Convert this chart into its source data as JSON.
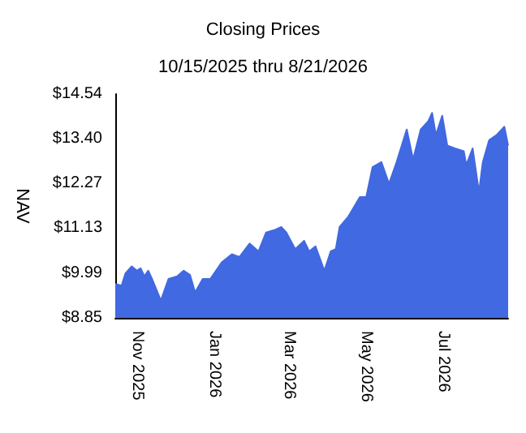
{
  "chart_data": {
    "type": "area",
    "title": "Closing Prices",
    "subtitle": "10/15/2025 thru 8/21/2026",
    "ylabel": "NAV",
    "x": [
      "2025-10-15",
      "2025-10-20",
      "2025-10-23",
      "2025-10-28",
      "2025-11-01",
      "2025-11-04",
      "2025-11-07",
      "2025-11-10",
      "2025-11-13",
      "2025-11-20",
      "2025-11-26",
      "2025-12-03",
      "2025-12-08",
      "2025-12-13",
      "2025-12-17",
      "2025-12-23",
      "2025-12-29",
      "2026-01-07",
      "2026-01-15",
      "2026-01-21",
      "2026-01-29",
      "2026-02-05",
      "2026-02-11",
      "2026-02-18",
      "2026-02-23",
      "2026-02-27",
      "2026-03-06",
      "2026-03-13",
      "2026-03-17",
      "2026-03-22",
      "2026-03-29",
      "2026-04-03",
      "2026-04-07",
      "2026-04-10",
      "2026-04-17",
      "2026-04-26",
      "2026-05-01",
      "2026-05-06",
      "2026-05-13",
      "2026-05-19",
      "2026-05-25",
      "2026-06-02",
      "2026-06-07",
      "2026-06-13",
      "2026-06-19",
      "2026-06-22",
      "2026-06-25",
      "2026-06-30",
      "2026-07-04",
      "2026-07-10",
      "2026-07-17",
      "2026-07-19",
      "2026-07-24",
      "2026-07-29",
      "2026-08-01",
      "2026-08-06",
      "2026-08-12",
      "2026-08-18",
      "2026-08-21"
    ],
    "series": [
      {
        "color": "#4169e1",
        "values": [
          9.71,
          9.67,
          9.98,
          10.16,
          10.05,
          10.11,
          9.91,
          10.05,
          9.84,
          9.29,
          9.84,
          9.91,
          10.05,
          9.94,
          9.5,
          9.84,
          9.84,
          10.26,
          10.47,
          10.4,
          10.74,
          10.54,
          11.02,
          11.09,
          11.16,
          11.02,
          10.6,
          10.81,
          10.54,
          10.67,
          10.05,
          10.54,
          10.6,
          11.16,
          11.43,
          11.92,
          11.92,
          12.68,
          12.81,
          12.26,
          12.81,
          13.64,
          12.88,
          13.64,
          13.85,
          14.06,
          13.5,
          13.99,
          13.23,
          13.16,
          13.09,
          12.74,
          13.16,
          12.05,
          12.81,
          13.37,
          13.5,
          13.71,
          13.23
        ]
      }
    ],
    "xlim": [
      "2025-10-15",
      "2026-08-21"
    ],
    "xticks": [
      {
        "value": "2025-11-01",
        "label": "Nov 2025"
      },
      {
        "value": "2026-01-01",
        "label": "Jan 2026"
      },
      {
        "value": "2026-03-01",
        "label": "Mar 2026"
      },
      {
        "value": "2026-05-01",
        "label": "May 2026"
      },
      {
        "value": "2026-07-01",
        "label": "Jul 2026"
      }
    ],
    "ylim": [
      8.85,
      14.54
    ],
    "yticks": [
      {
        "value": 8.85,
        "label": "$8.85"
      },
      {
        "value": 9.99,
        "label": "$9.99"
      },
      {
        "value": 11.13,
        "label": "$11.13"
      },
      {
        "value": 12.27,
        "label": "$12.27"
      },
      {
        "value": 13.4,
        "label": "$13.40"
      },
      {
        "value": 14.54,
        "label": "$14.54"
      }
    ],
    "grid": false
  }
}
